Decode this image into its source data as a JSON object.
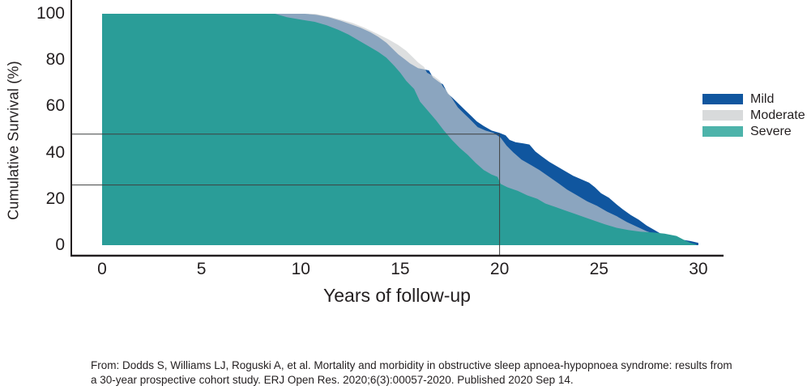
{
  "figure": {
    "x_axis_label": "Years of follow-up",
    "y_axis_label": "Cumulative Survival (%)"
  },
  "legend": {
    "items": [
      {
        "label": "Mild",
        "color": "#10569f"
      },
      {
        "label": "Moderate",
        "color": "#d8dadb"
      },
      {
        "label": "Severe",
        "color": "#4db3aa"
      }
    ]
  },
  "citation": {
    "lines": [
      "From: Dodds S, Williams LJ, Roguski A, et al. Mortality and morbidity in obstructive sleep apnoea-hypopnoea syndrome: results from",
      "a 30-year prospective cohort study. ERJ Open Res. 2020;6(3):00057-2020. Published 2020 Sep 14."
    ]
  },
  "chart_data": {
    "type": "area",
    "title": "",
    "xlabel": "Years of follow-up",
    "ylabel": "Cumulative Survival (%)",
    "xlim": [
      0,
      30
    ],
    "ylim": [
      0,
      100
    ],
    "x_ticks": [
      0,
      5,
      10,
      15,
      20,
      25,
      30
    ],
    "y_ticks": [
      100,
      80,
      60,
      40,
      20,
      0
    ],
    "grid": false,
    "legend_position": "right",
    "reference_lines": {
      "horizontal_pct": [
        48,
        26
      ],
      "vertical_year": 20,
      "color": "#3f4040"
    },
    "series": [
      {
        "name": "Mild",
        "color": "#10569f",
        "fill_opacity": 1,
        "points": [
          [
            0,
            100
          ],
          [
            10.2,
            100
          ],
          [
            10.8,
            99.5
          ],
          [
            11.4,
            98.5
          ],
          [
            12,
            97
          ],
          [
            12.5,
            95.5
          ],
          [
            13,
            94
          ],
          [
            13.5,
            92
          ],
          [
            13.9,
            90
          ],
          [
            14.3,
            87.5
          ],
          [
            14.6,
            85
          ],
          [
            14.9,
            82.5
          ],
          [
            15.2,
            80.5
          ],
          [
            15.5,
            78.5
          ],
          [
            15.9,
            76.5
          ],
          [
            16.2,
            76
          ],
          [
            16.45,
            75.5
          ],
          [
            16.65,
            72.5
          ],
          [
            16.95,
            70.5
          ],
          [
            17.15,
            69.5
          ],
          [
            17.4,
            65.5
          ],
          [
            17.65,
            63.5
          ],
          [
            17.95,
            61
          ],
          [
            18.25,
            58.5
          ],
          [
            18.55,
            56
          ],
          [
            18.85,
            53.5
          ],
          [
            19.2,
            51.5
          ],
          [
            19.6,
            49.5
          ],
          [
            20,
            48.5
          ],
          [
            20.3,
            47.5
          ],
          [
            20.5,
            45.5
          ],
          [
            20.8,
            44.5
          ],
          [
            21.2,
            44
          ],
          [
            21.5,
            43.5
          ],
          [
            21.8,
            40.5
          ],
          [
            22.1,
            38.5
          ],
          [
            22.5,
            36
          ],
          [
            22.9,
            34
          ],
          [
            23.3,
            32
          ],
          [
            23.7,
            30
          ],
          [
            24.1,
            28.5
          ],
          [
            24.5,
            27
          ],
          [
            24.8,
            25
          ],
          [
            25.1,
            22.5
          ],
          [
            25.5,
            20.5
          ],
          [
            25.9,
            17.5
          ],
          [
            26.2,
            15.5
          ],
          [
            26.6,
            13
          ],
          [
            27,
            11
          ],
          [
            27.4,
            8.5
          ],
          [
            27.8,
            6.5
          ],
          [
            28.2,
            4.5
          ],
          [
            28.7,
            3.2
          ],
          [
            29.1,
            2.5
          ],
          [
            29.6,
            1.8
          ],
          [
            30,
            1
          ]
        ]
      },
      {
        "name": "Moderate",
        "color": "#cbced0",
        "fill_opacity": 0.66,
        "points": [
          [
            0,
            100
          ],
          [
            10.7,
            100
          ],
          [
            11.3,
            99
          ],
          [
            12,
            97.5
          ],
          [
            12.6,
            96
          ],
          [
            13.2,
            94
          ],
          [
            13.8,
            91.5
          ],
          [
            14.4,
            89
          ],
          [
            14.9,
            86.5
          ],
          [
            15.3,
            84
          ],
          [
            15.6,
            81.5
          ],
          [
            15.9,
            79
          ],
          [
            16.2,
            77
          ],
          [
            16.35,
            74.5
          ],
          [
            16.7,
            73
          ],
          [
            17,
            71
          ],
          [
            17.15,
            68.5
          ],
          [
            17.35,
            66.5
          ],
          [
            17.6,
            63.5
          ],
          [
            17.9,
            59.5
          ],
          [
            18.2,
            57
          ],
          [
            18.5,
            54.5
          ],
          [
            18.9,
            51
          ],
          [
            19.3,
            49.5
          ],
          [
            19.7,
            48.5
          ],
          [
            20.05,
            46.5
          ],
          [
            20.35,
            43
          ],
          [
            20.7,
            40
          ],
          [
            21.1,
            37
          ],
          [
            21.6,
            34.5
          ],
          [
            22,
            32.5
          ],
          [
            22.5,
            29.5
          ],
          [
            23,
            26.5
          ],
          [
            23.4,
            24
          ],
          [
            23.9,
            21.5
          ],
          [
            24.4,
            19
          ],
          [
            24.9,
            17
          ],
          [
            25.4,
            14.5
          ],
          [
            25.9,
            12.5
          ],
          [
            26.4,
            10
          ],
          [
            26.9,
            8
          ],
          [
            27.4,
            6
          ],
          [
            27.9,
            4.5
          ],
          [
            28.4,
            3
          ],
          [
            28.9,
            1.8
          ],
          [
            29.3,
            0.8
          ],
          [
            29.6,
            0.2
          ]
        ]
      },
      {
        "name": "Severe",
        "color": "#2a9d98",
        "fill_opacity": 1,
        "points": [
          [
            0,
            100
          ],
          [
            8.7,
            100
          ],
          [
            9.3,
            98.5
          ],
          [
            10,
            97.5
          ],
          [
            10.7,
            96.5
          ],
          [
            11.3,
            95
          ],
          [
            11.9,
            93
          ],
          [
            12.4,
            91
          ],
          [
            12.9,
            88.5
          ],
          [
            13.4,
            86
          ],
          [
            13.9,
            83.5
          ],
          [
            14.3,
            81
          ],
          [
            14.7,
            77.5
          ],
          [
            15,
            74.5
          ],
          [
            15.3,
            71
          ],
          [
            15.7,
            67.5
          ],
          [
            16,
            62
          ],
          [
            16.4,
            58
          ],
          [
            16.8,
            54
          ],
          [
            17.2,
            49.5
          ],
          [
            17.6,
            45.5
          ],
          [
            18,
            42
          ],
          [
            18.4,
            39
          ],
          [
            18.8,
            35.5
          ],
          [
            19.2,
            32.5
          ],
          [
            19.6,
            30.5
          ],
          [
            19.9,
            29.5
          ],
          [
            20.05,
            26.5
          ],
          [
            20.4,
            25
          ],
          [
            20.9,
            23.5
          ],
          [
            21.4,
            21.5
          ],
          [
            21.9,
            20
          ],
          [
            22.3,
            18
          ],
          [
            22.8,
            16.5
          ],
          [
            23.3,
            15
          ],
          [
            23.8,
            13.5
          ],
          [
            24.3,
            12
          ],
          [
            24.8,
            10.5
          ],
          [
            25.3,
            9
          ],
          [
            25.9,
            7.5
          ],
          [
            26.5,
            6.5
          ],
          [
            27.1,
            5.8
          ],
          [
            27.7,
            5.5
          ],
          [
            28.3,
            5
          ],
          [
            28.9,
            4
          ],
          [
            29.3,
            2.2
          ],
          [
            29.6,
            1
          ],
          [
            29.9,
            0.3
          ]
        ]
      }
    ]
  }
}
